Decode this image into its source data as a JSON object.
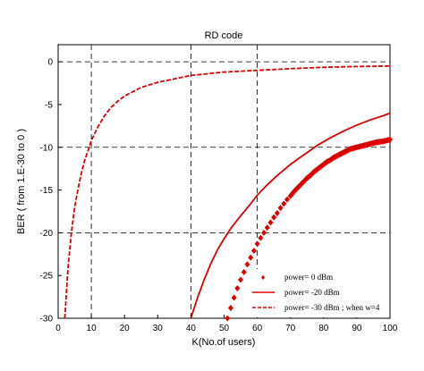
{
  "chart_data": {
    "type": "line",
    "title": "RD code",
    "xlabel": "K(No.of users)",
    "ylabel": "BER ( from 1.E-30 to 0 )",
    "xlim": [
      0,
      100
    ],
    "ylim": [
      -30,
      2
    ],
    "xticks": [
      0,
      10,
      20,
      30,
      40,
      50,
      60,
      70,
      80,
      90,
      100
    ],
    "yticks": [
      0,
      -5,
      -10,
      -15,
      -20,
      -25,
      -30
    ],
    "grid": "dashed at x = 10, 40, 60 and y = 0, -10, -20",
    "legend_position": "bottom-right",
    "series": [
      {
        "name": "power= 0 dBm",
        "style": "diamond-markers",
        "color": "#dd0000",
        "x": [
          51,
          52,
          53,
          54,
          55,
          56,
          57,
          58,
          59,
          60,
          61,
          62,
          63,
          64,
          65,
          66,
          67,
          68,
          69,
          70,
          71,
          72,
          73,
          74,
          75,
          76,
          77,
          78,
          79,
          80,
          81,
          82,
          83,
          84,
          85,
          86,
          87,
          88,
          89,
          90,
          91,
          92,
          93,
          94,
          95,
          96,
          97,
          98,
          99,
          100
        ],
        "values": [
          -30,
          -28.8,
          -27.6,
          -26.5,
          -25.5,
          -24.6,
          -23.7,
          -22.9,
          -22.1,
          -21.3,
          -20.6,
          -20,
          -19.4,
          -18.8,
          -18.2,
          -17.7,
          -17.1,
          -16.6,
          -16.1,
          -15.7,
          -15.2,
          -14.8,
          -14.4,
          -14,
          -13.6,
          -13.3,
          -12.9,
          -12.6,
          -12.3,
          -12,
          -11.7,
          -11.5,
          -11.2,
          -11,
          -10.8,
          -10.6,
          -10.4,
          -10.2,
          -10.1,
          -10,
          -9.9,
          -9.8,
          -9.7,
          -9.6,
          -9.5,
          -9.4,
          -9.35,
          -9.3,
          -9.2,
          -9.1
        ]
      },
      {
        "name": "power= -20 dBm",
        "style": "solid",
        "color": "#dd0000",
        "x": [
          40,
          42,
          44,
          46,
          48,
          50,
          52,
          55,
          58,
          60,
          63,
          66,
          70,
          74,
          78,
          82,
          86,
          90,
          94,
          98,
          100
        ],
        "values": [
          -30,
          -27.6,
          -25.5,
          -23.6,
          -22,
          -20.7,
          -19.5,
          -18,
          -16.6,
          -15.6,
          -14.4,
          -13.3,
          -12,
          -10.9,
          -9.8,
          -8.9,
          -8.1,
          -7.4,
          -6.8,
          -6.3,
          -6
        ]
      },
      {
        "name": "power= -30 dBm ; when w=4",
        "style": "dashed",
        "color": "#dd0000",
        "x": [
          2,
          3,
          4,
          5,
          6,
          7,
          8,
          9,
          10,
          12,
          14,
          16,
          18,
          20,
          25,
          30,
          35,
          40,
          50,
          60,
          70,
          80,
          90,
          100
        ],
        "values": [
          -30,
          -24,
          -20,
          -17,
          -14.8,
          -13,
          -11.5,
          -10.4,
          -9.2,
          -7.6,
          -6.3,
          -5.3,
          -4.6,
          -4,
          -3,
          -2.4,
          -2,
          -1.6,
          -1.2,
          -1,
          -0.8,
          -0.65,
          -0.55,
          -0.5
        ]
      }
    ]
  }
}
